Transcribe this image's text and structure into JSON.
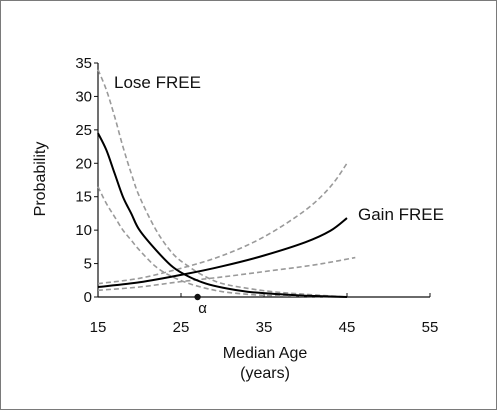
{
  "chart_data": {
    "type": "line",
    "title": "",
    "xlabel_line1": "Median Age",
    "xlabel_line2": "(years)",
    "ylabel": "Probability",
    "xlim": [
      15,
      55
    ],
    "ylim": [
      0,
      35
    ],
    "xticks": [
      15,
      25,
      35,
      45,
      55
    ],
    "yticks": [
      0,
      5,
      10,
      15,
      20,
      25,
      30,
      35
    ],
    "grid": false,
    "marker": {
      "x": 27,
      "y": 0,
      "label": "α"
    },
    "series": [
      {
        "name": "Lose FREE",
        "role": "central",
        "style": "solid",
        "color": "#000000",
        "x": [
          15,
          16,
          17,
          18,
          19,
          20,
          22,
          24,
          26,
          28,
          30,
          33,
          36,
          40,
          45
        ],
        "y": [
          24.5,
          22,
          18.5,
          15,
          12.5,
          10,
          7,
          4.5,
          3,
          2,
          1.4,
          0.8,
          0.5,
          0.2,
          0
        ]
      },
      {
        "role": "upper-bound",
        "style": "dashed",
        "color": "#9a9a9a",
        "x": [
          15,
          16,
          17,
          18,
          19,
          20,
          22,
          24,
          26,
          28,
          30,
          33,
          36,
          40,
          45
        ],
        "y": [
          34,
          31,
          27,
          22.5,
          18.5,
          15,
          10,
          6.5,
          4.5,
          3,
          2,
          1.3,
          0.8,
          0.4,
          0
        ]
      },
      {
        "role": "lower-bound",
        "style": "dashed",
        "color": "#9a9a9a",
        "x": [
          15,
          16,
          17,
          18,
          19,
          20,
          22,
          24,
          26,
          28,
          30,
          33,
          36,
          40,
          45
        ],
        "y": [
          16.5,
          14,
          12,
          10,
          8.5,
          7,
          4.5,
          3,
          2,
          1.3,
          0.8,
          0.4,
          0.2,
          0.1,
          0
        ]
      },
      {
        "name": "Gain FREE",
        "role": "central",
        "style": "solid",
        "color": "#000000",
        "x": [
          15,
          20,
          25,
          30,
          35,
          40,
          43,
          45
        ],
        "y": [
          1.5,
          2.2,
          3.3,
          4.6,
          6.2,
          8.2,
          9.9,
          11.8
        ]
      },
      {
        "role": "upper-bound",
        "style": "dashed",
        "color": "#9a9a9a",
        "x": [
          15,
          20,
          25,
          30,
          35,
          40,
          43,
          45
        ],
        "y": [
          2,
          2.8,
          4.3,
          6.2,
          9,
          13,
          16.5,
          20
        ]
      },
      {
        "role": "lower-bound",
        "style": "dashed",
        "color": "#9a9a9a",
        "x": [
          15,
          20,
          25,
          30,
          35,
          40,
          43,
          46
        ],
        "y": [
          1,
          1.5,
          2.3,
          3,
          3.8,
          4.6,
          5.2,
          5.9
        ]
      }
    ]
  }
}
